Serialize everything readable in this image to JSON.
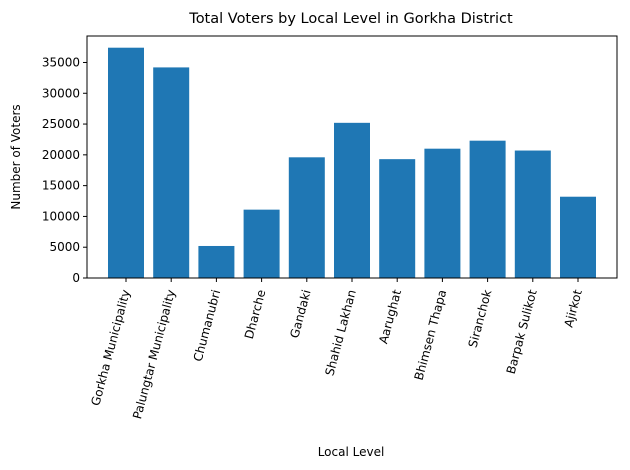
{
  "chart_data": {
    "type": "bar",
    "title": "Total Voters by Local Level in Gorkha District",
    "xlabel": "Local Level",
    "ylabel": "Number of Voters",
    "categories": [
      "Gorkha Municipality",
      "Palungtar Municipality",
      "Chumanubri",
      "Dharche",
      "Gandaki",
      "Shahid Lakhan",
      "Aarughat",
      "Bhimsen Thapa",
      "Siranchok",
      "Barpak Sulikot",
      "Ajirkot"
    ],
    "values": [
      37400,
      34200,
      5200,
      11100,
      19600,
      25200,
      19300,
      21000,
      22300,
      20700,
      13200
    ],
    "ylim": [
      0,
      39300
    ],
    "yticks": [
      0,
      5000,
      10000,
      15000,
      20000,
      25000,
      30000,
      35000
    ],
    "bar_color": "#1f77b4",
    "grid": false,
    "legend": "none"
  }
}
